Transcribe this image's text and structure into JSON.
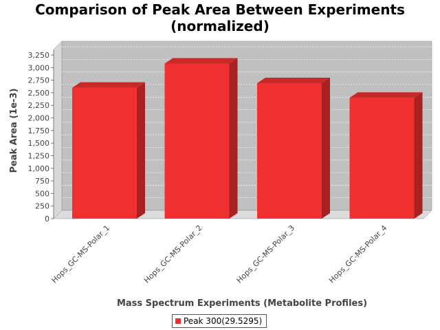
{
  "chart_data": {
    "type": "bar",
    "title": "Comparison of Peak Area Between Experiments",
    "title_line2": "(normalized)",
    "xlabel": "Mass Spectrum Experiments (Metabolite Profiles)",
    "ylabel": "Peak Area (1e-3)",
    "ylim": [
      0,
      3250
    ],
    "yticks": [
      "0",
      "250",
      "500",
      "750",
      "1,000",
      "1,250",
      "1,500",
      "1,750",
      "2,000",
      "2,250",
      "2,500",
      "2,750",
      "3,000",
      "3,250"
    ],
    "categories": [
      "Hops_GC-MS-Polar_1",
      "Hops_GC-MS-Polar_2",
      "Hops_GC-MS-Polar_3",
      "Hops_GC-MS-Polar_4"
    ],
    "series": [
      {
        "name": "Peak 300(29.5295)",
        "values": [
          2600,
          3080,
          2690,
          2400
        ]
      }
    ],
    "grid": true,
    "legend": "bottom-center",
    "colors": {
      "bar": "#f03030",
      "bar_top": "#c82828",
      "bar_side": "#a82020",
      "plot_bg": "#c0c0c0",
      "floor": "#dcdcdc"
    }
  }
}
